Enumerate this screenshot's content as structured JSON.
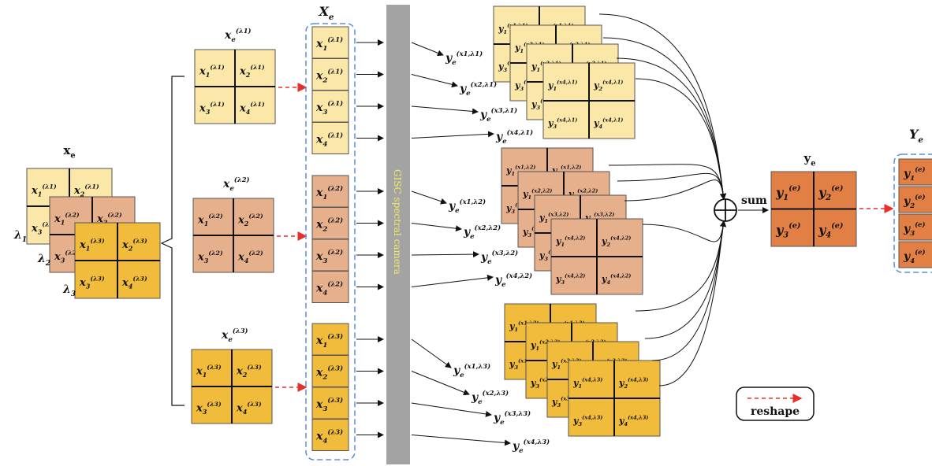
{
  "colors": {
    "light": "#fbe7a7",
    "mid": "#e7b08c",
    "dark": "#f1bb3c",
    "out": "#e27f44",
    "cam": "#a3a3a3",
    "dash_red": "#e8302a",
    "dash_blue": "#5b8fd0"
  },
  "labels": {
    "xe": "x",
    "xe_sub": "e",
    "Xe": "X",
    "Xe_sub": "e",
    "ye": "y",
    "ye_sub": "e",
    "Ye": "Y",
    "Ye_sub": "e",
    "sum": "sum",
    "camera": "GISC spectral camera",
    "reshape": "reshape",
    "lambdas": [
      "λ1",
      "λ2",
      "λ3"
    ]
  },
  "groups": [
    {
      "lam": "λ1",
      "color": "light",
      "cells": [
        "x1(λ1)",
        "x2(λ1)",
        "x3(λ1)",
        "x4(λ1)"
      ],
      "meas": [
        "ye(x1,λ1)",
        "ye(x2,λ1)",
        "ye(x3,λ1)",
        "ye(x4,λ1)"
      ]
    },
    {
      "lam": "λ2",
      "color": "mid",
      "cells": [
        "x1(λ2)",
        "x2(λ2)",
        "x3(λ2)",
        "x4(λ2)"
      ],
      "meas": [
        "ye(x1,λ2)",
        "ye(x2,λ2)",
        "ye(x3,λ2)",
        "ye(x4,λ2)"
      ]
    },
    {
      "lam": "λ3",
      "color": "dark",
      "cells": [
        "x1(λ3)",
        "x2(λ3)",
        "x3(λ3)",
        "x4(λ3)"
      ],
      "meas": [
        "ye(x1,λ3)",
        "ye(x2,λ3)",
        "ye(x3,λ3)",
        "ye(x4,λ3)"
      ]
    }
  ],
  "output": {
    "cells": [
      "y1(e)",
      "y2(e)",
      "y3(e)",
      "y4(e)"
    ]
  }
}
